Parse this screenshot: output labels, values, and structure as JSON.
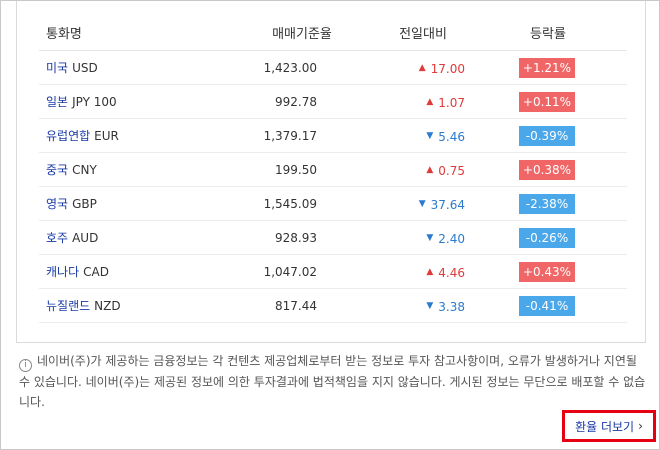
{
  "table": {
    "headers": {
      "name": "통화명",
      "rate": "매매기준율",
      "diff": "전일대비",
      "pct": "등락률"
    },
    "rows": [
      {
        "name": "미국",
        "code": "USD",
        "rate": "1,423.00",
        "direction": "up",
        "diff": "17.00",
        "pct": "+1.21%"
      },
      {
        "name": "일본",
        "code": "JPY 100",
        "rate": "992.78",
        "direction": "up",
        "diff": "1.07",
        "pct": "+0.11%"
      },
      {
        "name": "유럽연합",
        "code": "EUR",
        "rate": "1,379.17",
        "direction": "down",
        "diff": "5.46",
        "pct": "-0.39%"
      },
      {
        "name": "중국",
        "code": "CNY",
        "rate": "199.50",
        "direction": "up",
        "diff": "0.75",
        "pct": "+0.38%"
      },
      {
        "name": "영국",
        "code": "GBP",
        "rate": "1,545.09",
        "direction": "down",
        "diff": "37.64",
        "pct": "-2.38%"
      },
      {
        "name": "호주",
        "code": "AUD",
        "rate": "928.93",
        "direction": "down",
        "diff": "2.40",
        "pct": "-0.26%"
      },
      {
        "name": "캐나다",
        "code": "CAD",
        "rate": "1,047.02",
        "direction": "up",
        "diff": "4.46",
        "pct": "+0.43%"
      },
      {
        "name": "뉴질랜드",
        "code": "NZD",
        "rate": "817.44",
        "direction": "down",
        "diff": "3.38",
        "pct": "-0.41%"
      }
    ]
  },
  "icons": {
    "up": "triangle-up",
    "down": "triangle-down",
    "info": "info-circle",
    "more": "chevron-right"
  },
  "colors": {
    "up_text": "#e03a3a",
    "down_text": "#2a7bd0",
    "up_badge": "#f06565",
    "down_badge": "#4aa7ea",
    "link": "#1a3aa6",
    "highlight_box": "#e60012"
  },
  "notice": {
    "text": "네이버(주)가 제공하는 금융정보는 각 컨텐츠 제공업체로부터 받는 정보로 투자 참고사항이며, 오류가 발생하거나 지연될 수 있습니다. 네이버(주)는 제공된 정보에 의한 투자결과에 법적책임을 지지 않습니다. 게시된 정보는 무단으로 배포할 수 없습니다."
  },
  "more_link": {
    "label": "환율 더보기"
  }
}
